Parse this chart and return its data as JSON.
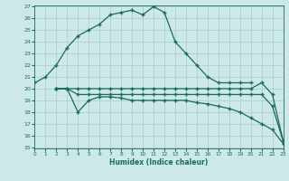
{
  "xlabel": "Humidex (Indice chaleur)",
  "xlim": [
    0,
    23
  ],
  "ylim": [
    15,
    27
  ],
  "yticks": [
    15,
    16,
    17,
    18,
    19,
    20,
    21,
    22,
    23,
    24,
    25,
    26,
    27
  ],
  "xticks": [
    0,
    1,
    2,
    3,
    4,
    5,
    6,
    7,
    8,
    9,
    10,
    11,
    12,
    13,
    14,
    15,
    16,
    17,
    18,
    19,
    20,
    21,
    22,
    23
  ],
  "bg_color": "#cce8e8",
  "line_color": "#1a6b5a",
  "grid_color": "#a8cccc",
  "line1_x": [
    0,
    1,
    2,
    3,
    4,
    5,
    6,
    7,
    8,
    9,
    10,
    11,
    12,
    13,
    14,
    15,
    16,
    17,
    18,
    19,
    20
  ],
  "line1_y": [
    20.5,
    21.0,
    22.0,
    23.5,
    24.5,
    25.0,
    25.5,
    26.3,
    26.5,
    26.7,
    26.3,
    27.0,
    26.5,
    24.0,
    23.0,
    22.0,
    21.0,
    20.5,
    20.5,
    20.5,
    20.5
  ],
  "line2_x": [
    2,
    3,
    4,
    5,
    6,
    7,
    8,
    9,
    10,
    11,
    12,
    13,
    14,
    15,
    16,
    17,
    18,
    19,
    20,
    21,
    22,
    23
  ],
  "line2_y": [
    20.0,
    20.0,
    20.0,
    20.0,
    20.0,
    20.0,
    20.0,
    20.0,
    20.0,
    20.0,
    20.0,
    20.0,
    20.0,
    20.0,
    20.0,
    20.0,
    20.0,
    20.0,
    20.0,
    20.5,
    19.5,
    15.5
  ],
  "line3_x": [
    2,
    3,
    4,
    5,
    6,
    7,
    8,
    9,
    10,
    11,
    12,
    13,
    14,
    15,
    16,
    17,
    18,
    19,
    20,
    21,
    22,
    23
  ],
  "line3_y": [
    20.0,
    20.0,
    19.5,
    19.5,
    19.5,
    19.5,
    19.5,
    19.5,
    19.5,
    19.5,
    19.5,
    19.5,
    19.5,
    19.5,
    19.5,
    19.5,
    19.5,
    19.5,
    19.5,
    19.5,
    18.5,
    15.5
  ],
  "line4_x": [
    2,
    3,
    4,
    5,
    6,
    7,
    8,
    9,
    10,
    11,
    12,
    13,
    14,
    15,
    16,
    17,
    18,
    19,
    20,
    21,
    22,
    23
  ],
  "line4_y": [
    20.0,
    20.0,
    18.0,
    19.0,
    19.3,
    19.3,
    19.2,
    19.0,
    19.0,
    19.0,
    19.0,
    19.0,
    19.0,
    18.8,
    18.7,
    18.5,
    18.3,
    18.0,
    17.5,
    17.0,
    16.5,
    15.3
  ]
}
